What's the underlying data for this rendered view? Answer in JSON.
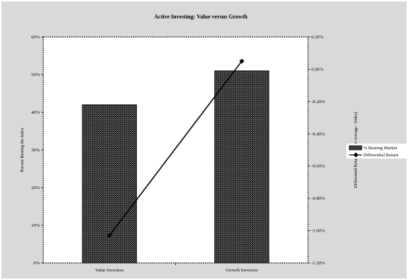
{
  "chart_data": {
    "type": "bar",
    "title": "Active Investing: Value versus Growth",
    "categories": [
      "Value Investors",
      "Growth Investors"
    ],
    "ylabel": "Percent Beating the Index",
    "y2label": "Differential Return (Active Average - Index)",
    "ylim": [
      0,
      60
    ],
    "y2lim": [
      -1.2,
      0.2
    ],
    "yticks": [
      "0%",
      "10%",
      "20%",
      "30%",
      "40%",
      "50%",
      "60%"
    ],
    "y2ticks": [
      "-1.20%",
      "-1.00%",
      "-0.80%",
      "-0.60%",
      "-0.40%",
      "-0.20%",
      "0.00%",
      "0.20%"
    ],
    "series": [
      {
        "name": "% Beating Market",
        "type": "bar",
        "axis": "left",
        "values": [
          42,
          51
        ]
      },
      {
        "name": "Differential Return",
        "type": "line",
        "axis": "right",
        "values": [
          -1.03,
          0.05
        ]
      }
    ],
    "legend_position": "right",
    "grid": false,
    "colors": {
      "plot_background": "#ffffff",
      "outer_background": "#d9d9d9",
      "bar_fill": "#3a3a3a",
      "line": "#000000"
    }
  }
}
